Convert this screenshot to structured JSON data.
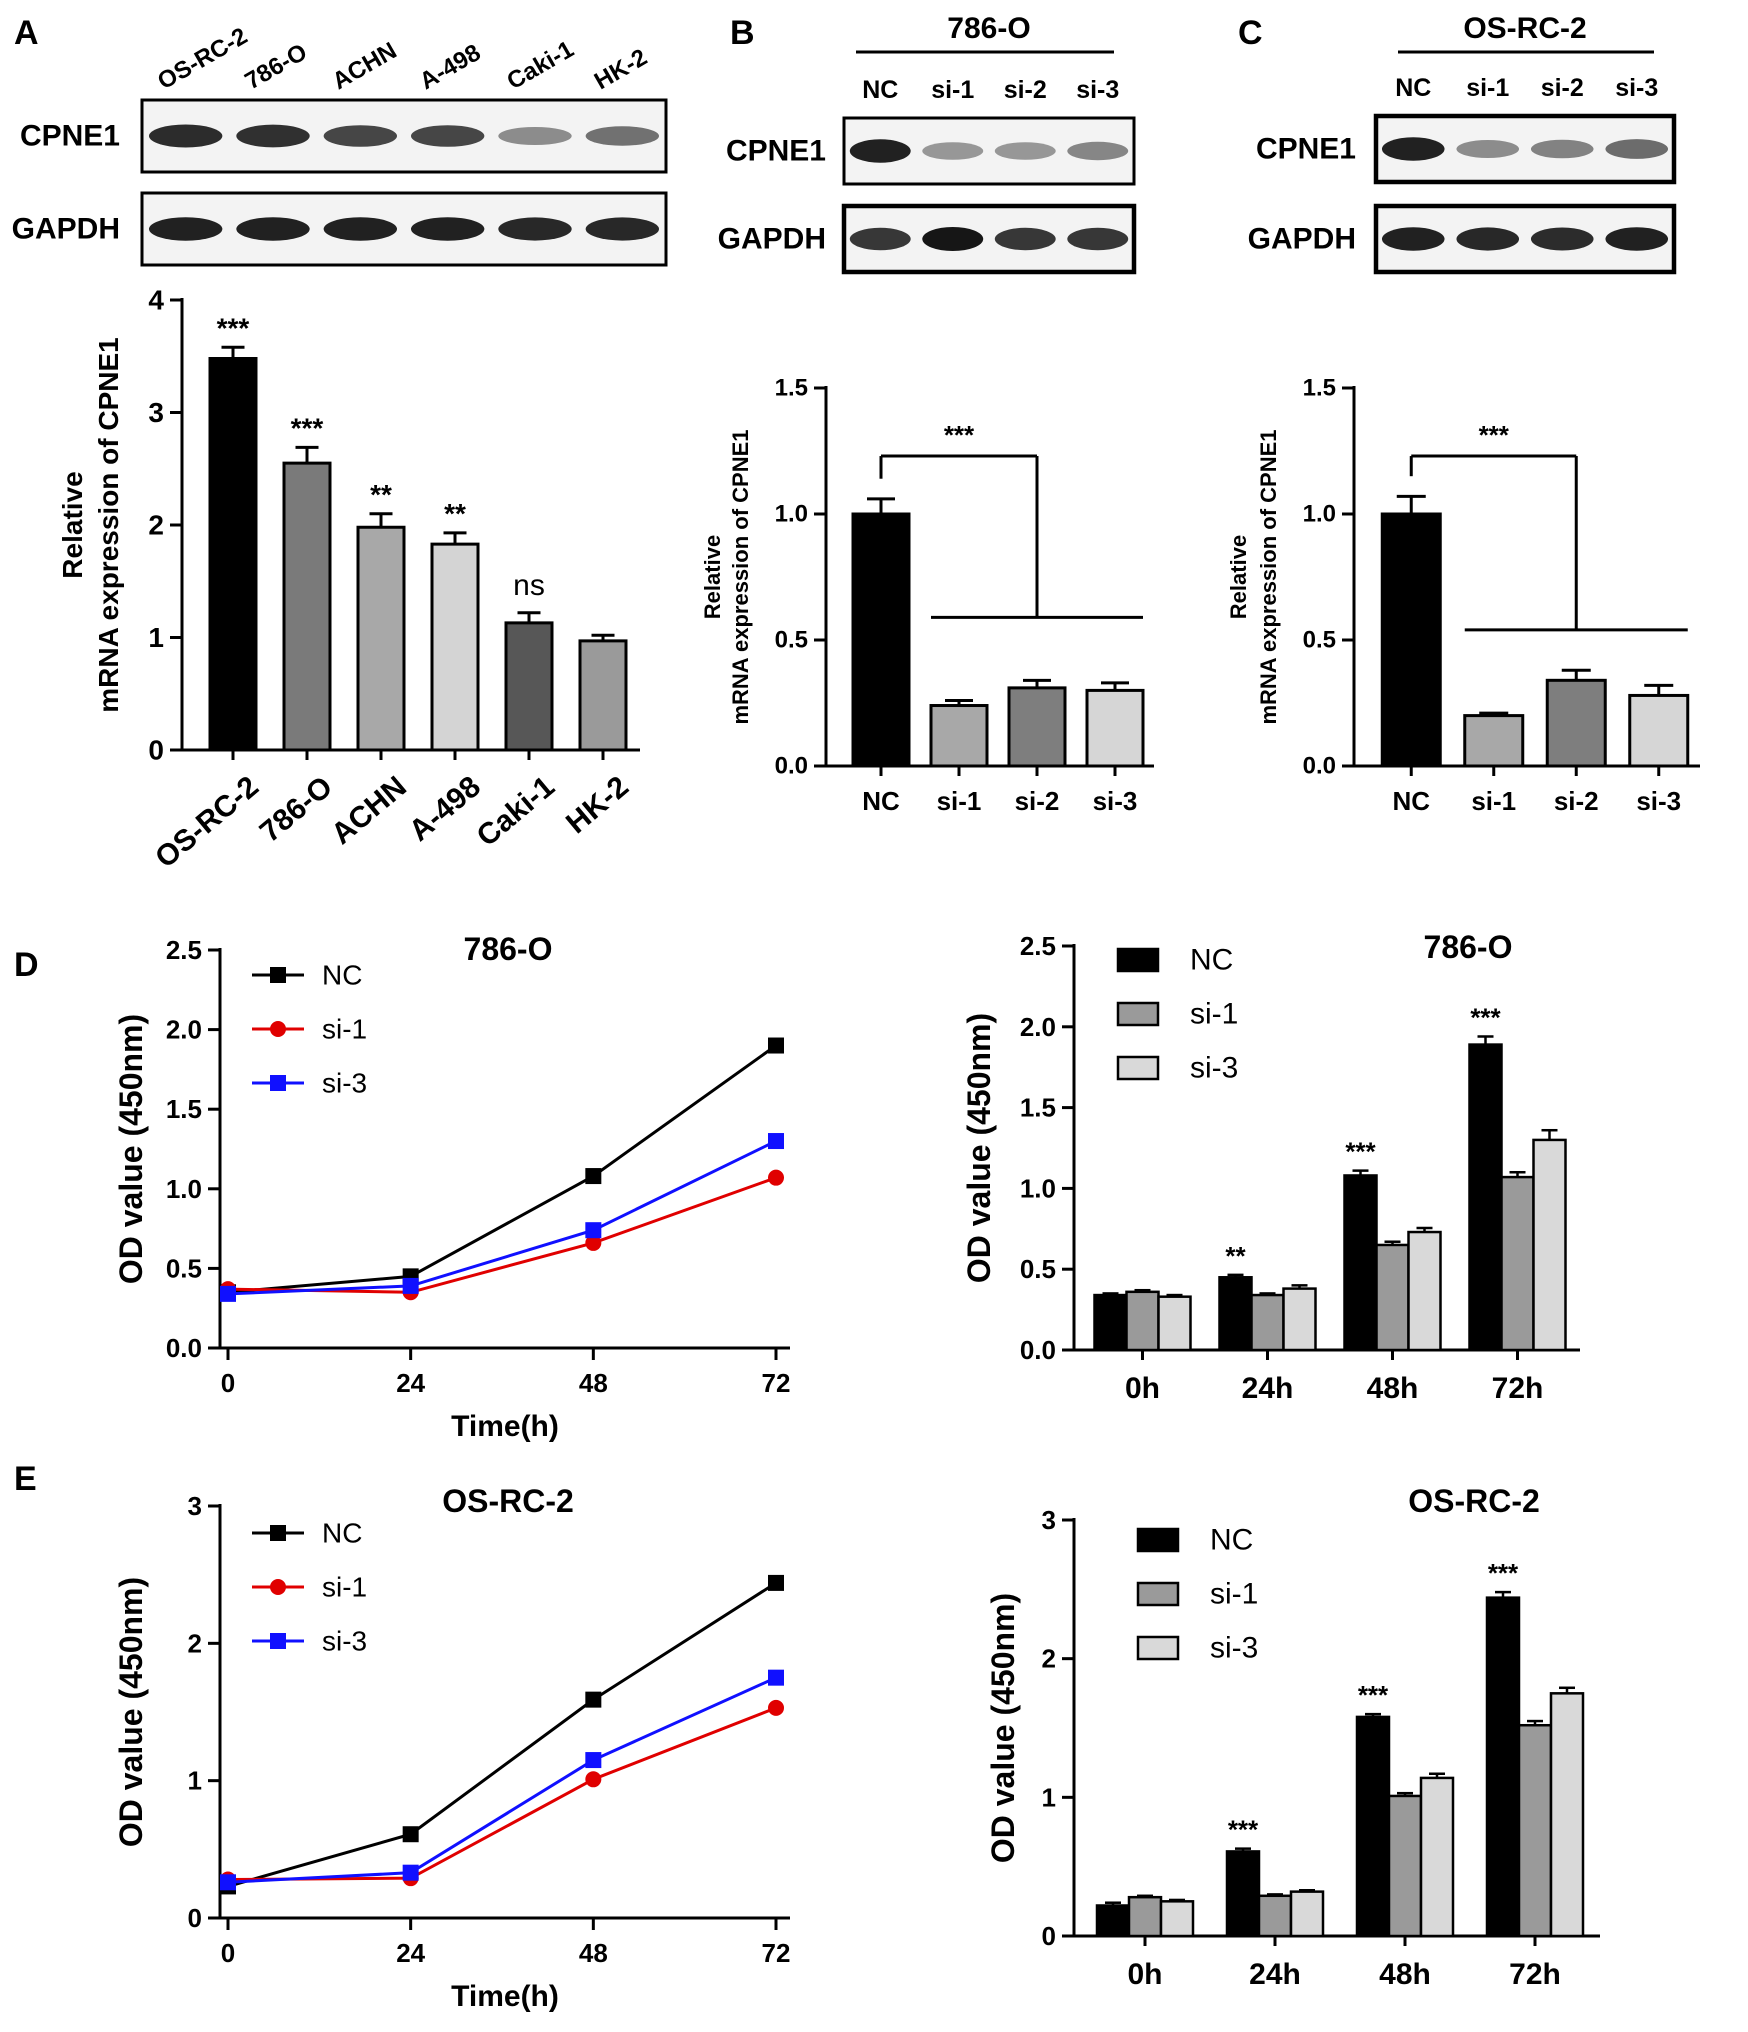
{
  "chart_data": [
    {
      "panel": "A",
      "type": "blot+bar",
      "blot": {
        "lanes": [
          "OS-RC-2",
          "786-O",
          "ACHN",
          "A-498",
          "Caki-1",
          "HK-2"
        ],
        "rows": [
          {
            "label": "CPNE1",
            "intensity": [
              0.9,
              0.88,
              0.78,
              0.78,
              0.45,
              0.58
            ]
          },
          {
            "label": "GAPDH",
            "intensity": [
              0.95,
              0.95,
              0.95,
              0.95,
              0.92,
              0.92
            ]
          }
        ]
      },
      "bar": {
        "categories": [
          "OS-RC-2",
          "786-O",
          "ACHN",
          "A-498",
          "Caki-1",
          "HK-2"
        ],
        "values": [
          3.48,
          2.55,
          1.98,
          1.83,
          1.13,
          0.97
        ],
        "errors": [
          0.1,
          0.14,
          0.12,
          0.1,
          0.09,
          0.05
        ],
        "significance": [
          "***",
          "***",
          "**",
          "**",
          "ns",
          ""
        ],
        "colors": [
          "#000000",
          "#7a7a7a",
          "#a8a8a8",
          "#d4d4d4",
          "#575757",
          "#9a9a9a"
        ],
        "ylabel": [
          "Relative",
          "mRNA expression of CPNE1"
        ],
        "ylim": [
          0,
          4
        ],
        "yticks": [
          "0",
          "1",
          "2",
          "3",
          "4"
        ]
      }
    },
    {
      "panel": "B",
      "type": "blot+bar",
      "blot": {
        "title": "786-O",
        "lanes": [
          "NC",
          "si-1",
          "si-2",
          "si-3"
        ],
        "rows": [
          {
            "label": "CPNE1",
            "intensity": [
              0.95,
              0.4,
              0.4,
              0.48
            ]
          },
          {
            "label": "GAPDH",
            "intensity": [
              0.85,
              1.0,
              0.85,
              0.85
            ]
          }
        ]
      },
      "bar": {
        "categories": [
          "NC",
          "si-1",
          "si-2",
          "si-3"
        ],
        "values": [
          1.0,
          0.24,
          0.31,
          0.3
        ],
        "errors": [
          0.06,
          0.02,
          0.03,
          0.03
        ],
        "significance": "***",
        "colors": [
          "#000000",
          "#a8a8a8",
          "#7e7e7e",
          "#d6d6d6"
        ],
        "ylabel": [
          "Relative",
          "mRNA expression of CPNE1"
        ],
        "ylim": [
          0,
          1.5
        ],
        "yticks": [
          "0.0",
          "0.5",
          "1.0",
          "1.5"
        ]
      }
    },
    {
      "panel": "C",
      "type": "blot+bar",
      "blot": {
        "title": "OS-RC-2",
        "lanes": [
          "NC",
          "si-1",
          "si-2",
          "si-3"
        ],
        "rows": [
          {
            "label": "CPNE1",
            "intensity": [
              0.95,
              0.45,
              0.5,
              0.6
            ]
          },
          {
            "label": "GAPDH",
            "intensity": [
              0.95,
              0.92,
              0.9,
              0.95
            ]
          }
        ]
      },
      "bar": {
        "categories": [
          "NC",
          "si-1",
          "si-2",
          "si-3"
        ],
        "values": [
          1.0,
          0.2,
          0.34,
          0.28
        ],
        "errors": [
          0.07,
          0.01,
          0.04,
          0.04
        ],
        "significance": "***",
        "colors": [
          "#000000",
          "#a8a8a8",
          "#7e7e7e",
          "#d6d6d6"
        ],
        "ylabel": [
          "Relative",
          "mRNA expression of CPNE1"
        ],
        "ylim": [
          0,
          1.5
        ],
        "yticks": [
          "0.0",
          "0.5",
          "1.0",
          "1.5"
        ]
      }
    },
    {
      "panel": "D",
      "type": "line",
      "title": "786-O",
      "x": [
        0,
        24,
        48,
        72
      ],
      "xticks": [
        "0",
        "24",
        "48",
        "72"
      ],
      "xlabel": "Time(h)",
      "ylabel": "OD value (450nm)",
      "ylim": [
        0,
        2.5
      ],
      "yticks": [
        "0.0",
        "0.5",
        "1.0",
        "1.5",
        "2.0",
        "2.5"
      ],
      "legend": "top-left",
      "series": [
        {
          "name": "NC",
          "color": "#000000",
          "marker": "square",
          "values": [
            0.35,
            0.45,
            1.08,
            1.9
          ]
        },
        {
          "name": "si-1",
          "color": "#e00000",
          "marker": "circle",
          "values": [
            0.37,
            0.35,
            0.66,
            1.07
          ]
        },
        {
          "name": "si-3",
          "color": "#1010ff",
          "marker": "square",
          "values": [
            0.34,
            0.39,
            0.74,
            1.3
          ]
        }
      ]
    },
    {
      "panel": "D",
      "type": "bar",
      "title": "786-O",
      "categories": [
        "0h",
        "24h",
        "48h",
        "72h"
      ],
      "ylabel": "OD value (450nm)",
      "ylim": [
        0,
        2.5
      ],
      "yticks": [
        "0.0",
        "0.5",
        "1.0",
        "1.5",
        "2.0",
        "2.5"
      ],
      "legend": "top-left",
      "significance": [
        "",
        "**",
        "***",
        "***"
      ],
      "series": [
        {
          "name": "NC",
          "color": "#000000",
          "values": [
            0.34,
            0.45,
            1.08,
            1.89
          ],
          "errors": [
            0.01,
            0.015,
            0.03,
            0.05
          ]
        },
        {
          "name": "si-1",
          "color": "#9a9a9a",
          "values": [
            0.36,
            0.34,
            0.65,
            1.07
          ],
          "errors": [
            0.01,
            0.01,
            0.02,
            0.03
          ]
        },
        {
          "name": "si-3",
          "color": "#d9d9d9",
          "values": [
            0.33,
            0.38,
            0.73,
            1.3
          ],
          "errors": [
            0.01,
            0.02,
            0.025,
            0.06
          ]
        }
      ]
    },
    {
      "panel": "E",
      "type": "line",
      "title": "OS-RC-2",
      "x": [
        0,
        24,
        48,
        72
      ],
      "xticks": [
        "0",
        "24",
        "48",
        "72"
      ],
      "xlabel": "Time(h)",
      "ylabel": "OD value (450nm)",
      "ylim": [
        0,
        3
      ],
      "yticks": [
        "0",
        "1",
        "2",
        "3"
      ],
      "legend": "top-left",
      "series": [
        {
          "name": "NC",
          "color": "#000000",
          "marker": "square",
          "values": [
            0.23,
            0.61,
            1.59,
            2.44
          ]
        },
        {
          "name": "si-1",
          "color": "#e00000",
          "marker": "circle",
          "values": [
            0.28,
            0.29,
            1.01,
            1.53
          ]
        },
        {
          "name": "si-3",
          "color": "#1010ff",
          "marker": "square",
          "values": [
            0.26,
            0.33,
            1.15,
            1.75
          ]
        }
      ]
    },
    {
      "panel": "E",
      "type": "bar",
      "title": "OS-RC-2",
      "categories": [
        "0h",
        "24h",
        "48h",
        "72h"
      ],
      "ylabel": "OD value (450nm)",
      "ylim": [
        0,
        3
      ],
      "yticks": [
        "0",
        "1",
        "2",
        "3"
      ],
      "legend": "top-left",
      "significance": [
        "",
        "***",
        "***",
        "***"
      ],
      "series": [
        {
          "name": "NC",
          "color": "#000000",
          "values": [
            0.22,
            0.61,
            1.58,
            2.44
          ],
          "errors": [
            0.02,
            0.02,
            0.02,
            0.04
          ]
        },
        {
          "name": "si-1",
          "color": "#9a9a9a",
          "values": [
            0.28,
            0.29,
            1.01,
            1.52
          ],
          "errors": [
            0.01,
            0.01,
            0.02,
            0.03
          ]
        },
        {
          "name": "si-3",
          "color": "#d9d9d9",
          "values": [
            0.25,
            0.32,
            1.14,
            1.75
          ],
          "errors": [
            0.01,
            0.01,
            0.03,
            0.04
          ]
        }
      ]
    }
  ]
}
